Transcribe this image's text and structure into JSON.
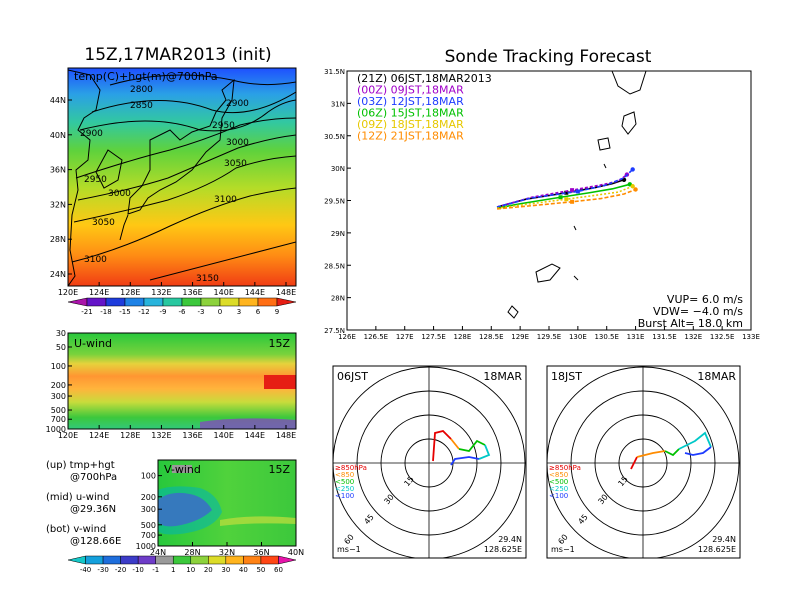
{
  "titles": {
    "left": "15Z,17MAR2013 (init)",
    "right": "Sonde Tracking Forecast"
  },
  "colors": {
    "purple": "#a000c8",
    "blue": "#1e3cff",
    "green": "#00c000",
    "yellow": "#e6c800",
    "orange": "#ff8c00",
    "red": "#e60000",
    "cyan": "#00c8c8"
  },
  "chart_data": [
    {
      "type": "heatmap",
      "title": "temp(C)+hgt(m)@700hPa",
      "x_ticks": [
        "120E",
        "124E",
        "128E",
        "132E",
        "136E",
        "140E",
        "144E",
        "148E"
      ],
      "y_ticks": [
        "24N",
        "28N",
        "32N",
        "36N",
        "40N",
        "44N"
      ],
      "contours": [
        "2800",
        "2850",
        "2900",
        "2900",
        "2950",
        "2950",
        "3000",
        "3000",
        "3050",
        "3050",
        "3100",
        "3100",
        "3150"
      ],
      "colorbar": [
        "-21",
        "-18",
        "-15",
        "-12",
        "-9",
        "-6",
        "-3",
        "0",
        "3",
        "6",
        "9"
      ]
    },
    {
      "type": "heatmap",
      "title": "U-wind",
      "time": "15Z",
      "x_ticks": [
        "120E",
        "124E",
        "128E",
        "132E",
        "136E",
        "140E",
        "144E",
        "148E"
      ],
      "y_ticks": [
        "30",
        "50",
        "100",
        "200",
        "300",
        "500",
        "700",
        "1000"
      ]
    },
    {
      "type": "heatmap",
      "title": "V-wind",
      "time": "15Z",
      "x_ticks": [
        "24N",
        "28N",
        "32N",
        "36N",
        "40N"
      ],
      "y_ticks": [
        "100",
        "200",
        "300",
        "500",
        "700",
        "1000"
      ],
      "colorbar": [
        "-40",
        "-30",
        "-20",
        "-10",
        "-1",
        "1",
        "10",
        "20",
        "30",
        "40",
        "50",
        "60"
      ]
    },
    {
      "type": "line",
      "title": "Sonde Tracking Forecast",
      "xlim": [
        126,
        133
      ],
      "ylim": [
        27.5,
        31.5
      ],
      "x_ticks": [
        "126E",
        "126.5E",
        "127E",
        "127.5E",
        "128E",
        "128.5E",
        "129E",
        "129.5E",
        "130E",
        "130.5E",
        "131E",
        "131.5E",
        "132E",
        "132.5E",
        "133E"
      ],
      "y_ticks": [
        "27.5N",
        "28N",
        "28.5N",
        "29N",
        "29.5N",
        "30N",
        "30.5N",
        "31N",
        "31.5N"
      ],
      "series": [
        {
          "name": "(21Z) 06JST,18MAR2013",
          "color": "#000000",
          "x": [
            128.6,
            129.1,
            129.8,
            130.3,
            130.6,
            130.8
          ],
          "y": [
            29.4,
            29.52,
            29.62,
            29.7,
            29.76,
            29.82
          ]
        },
        {
          "name": "(00Z) 09JST,18MAR",
          "color": "#a000c8",
          "x": [
            128.6,
            129.2,
            129.9,
            130.4,
            130.7,
            130.85
          ],
          "y": [
            29.4,
            29.55,
            29.66,
            29.74,
            29.8,
            29.9
          ]
        },
        {
          "name": "(03Z) 12JST,18MAR",
          "color": "#1e3cff",
          "x": [
            128.6,
            129.2,
            130.0,
            130.5,
            130.8,
            130.95
          ],
          "y": [
            29.4,
            29.54,
            29.64,
            29.74,
            29.85,
            29.98
          ]
        },
        {
          "name": "(06Z) 15JST,18MAR",
          "color": "#00c000",
          "x": [
            128.6,
            129.0,
            129.7,
            130.2,
            130.6,
            130.9
          ],
          "y": [
            29.38,
            29.45,
            29.55,
            29.62,
            29.68,
            29.75
          ]
        },
        {
          "name": "(09Z) 18JST,18MAR",
          "color": "#e6c800",
          "x": [
            128.6,
            129.1,
            129.8,
            130.3,
            130.7,
            130.95
          ],
          "y": [
            29.38,
            29.44,
            29.52,
            29.58,
            29.63,
            29.72
          ]
        },
        {
          "name": "(12Z) 21JST,18MAR",
          "color": "#ff8c00",
          "x": [
            128.6,
            129.2,
            129.9,
            130.4,
            130.8,
            131.0
          ],
          "y": [
            29.37,
            29.42,
            29.48,
            29.53,
            29.6,
            29.67
          ]
        }
      ],
      "annotations": {
        "vup": "VUP= 6.0 m/s",
        "vdw": "VDW= −4.0 m/s",
        "burst": "Burst Alt= 18.0 km"
      }
    }
  ],
  "hodographs": [
    {
      "time": "06JST",
      "date": "18MAR"
    },
    {
      "time": "18JST",
      "date": "18MAR"
    }
  ],
  "hodograph_common": {
    "rings": [
      "15",
      "30",
      "45",
      "60"
    ],
    "levels": [
      "≥850hPa",
      "<850",
      "<500",
      "<250",
      "<100"
    ],
    "unit": "ms−1",
    "lat": "29.4N",
    "lon": "128.625E"
  },
  "panel_notes": {
    "up_1": "(up) tmp+hgt",
    "up_2": "@700hPa",
    "mid_1": "(mid) u-wind",
    "mid_2": "@29.36N",
    "bot_1": "(bot) v-wind",
    "bot_2": "@128.66E"
  }
}
